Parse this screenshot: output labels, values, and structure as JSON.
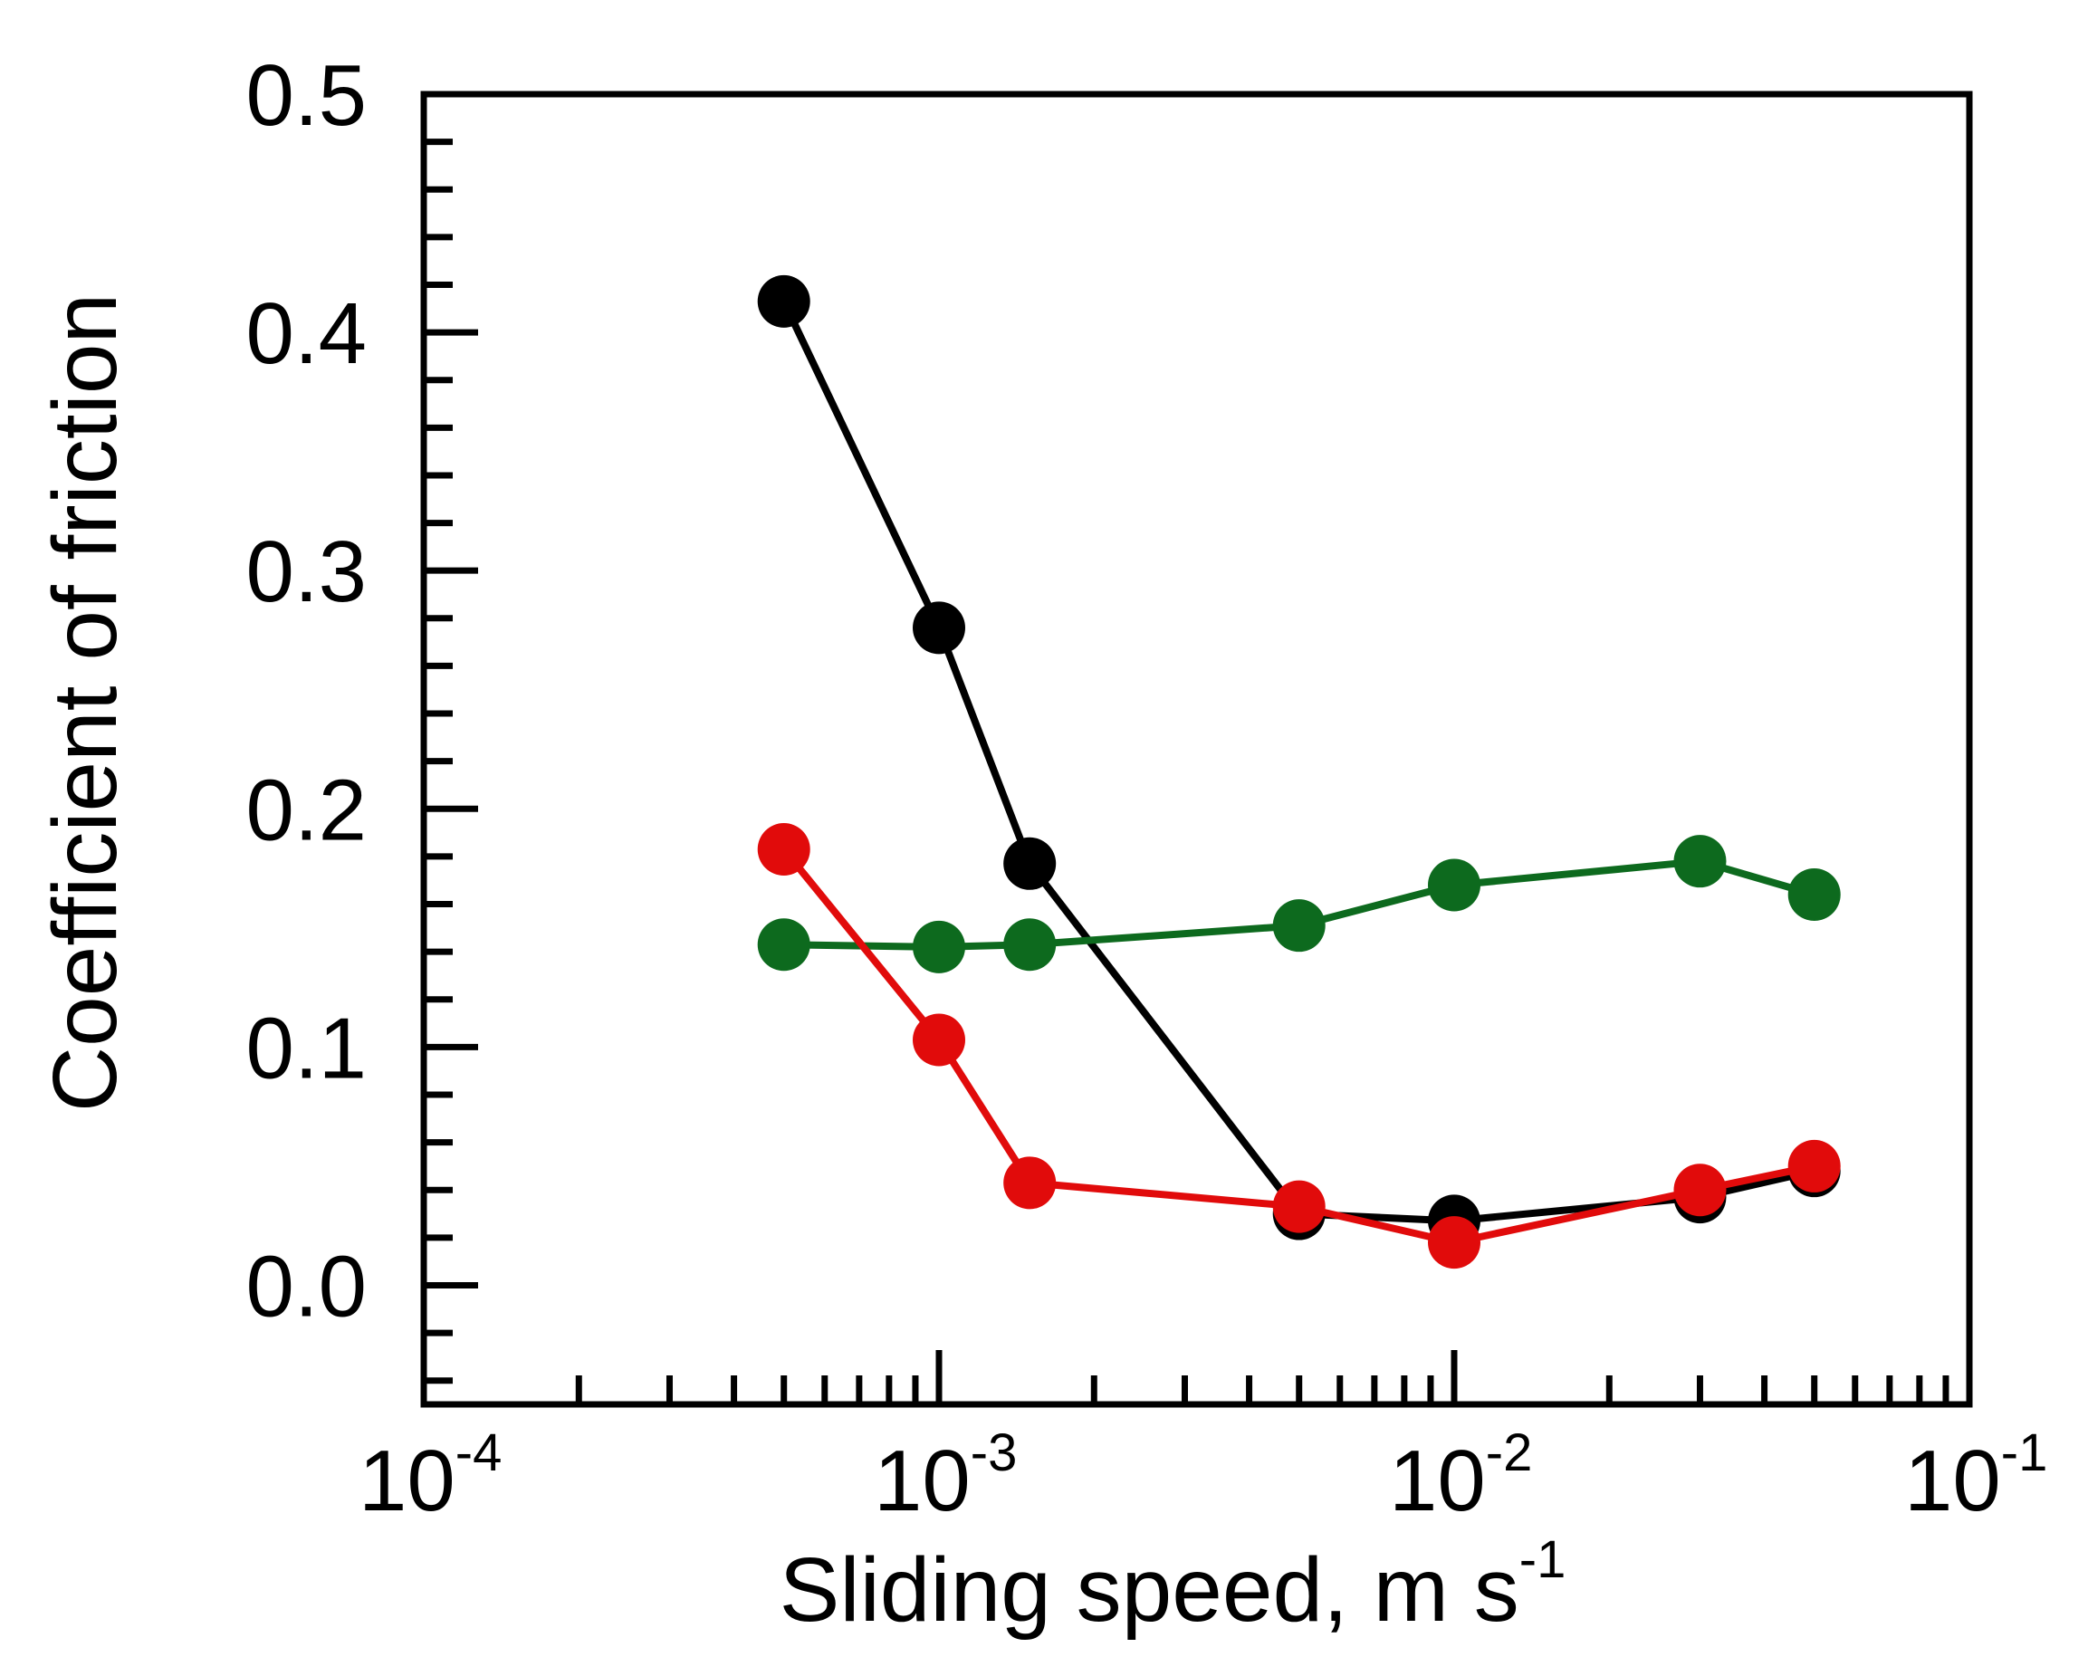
{
  "chart_data": {
    "type": "line",
    "title": "",
    "xlabel": "Sliding speed, m s",
    "xlabel_exponent": "-1",
    "ylabel": "Coefficient of friction",
    "xscale": "log",
    "xlim": [
      0.0001,
      0.1
    ],
    "ylim": [
      -0.05,
      0.5
    ],
    "x_ticks": [
      {
        "base": "10",
        "exp": "-4",
        "value": 0.0001
      },
      {
        "base": "10",
        "exp": "-3",
        "value": 0.001
      },
      {
        "base": "10",
        "exp": "-2",
        "value": 0.01
      },
      {
        "base": "10",
        "exp": "-1",
        "value": 0.1
      }
    ],
    "y_ticks": [
      {
        "label": "0.0",
        "value": 0.0
      },
      {
        "label": "0.1",
        "value": 0.1
      },
      {
        "label": "0.2",
        "value": 0.2
      },
      {
        "label": "0.3",
        "value": 0.3
      },
      {
        "label": "0.4",
        "value": 0.4
      },
      {
        "label": "0.5",
        "value": 0.5
      }
    ],
    "y_minor_step": 0.02,
    "grid": false,
    "legend": "none",
    "series": [
      {
        "name": "black",
        "color": "#000000",
        "points": [
          {
            "x": 0.0005,
            "y": 0.413
          },
          {
            "x": 0.001,
            "y": 0.276
          },
          {
            "x": 0.0015,
            "y": 0.177
          },
          {
            "x": 0.005,
            "y": 0.03
          },
          {
            "x": 0.01,
            "y": 0.027
          },
          {
            "x": 0.03,
            "y": 0.037
          },
          {
            "x": 0.05,
            "y": 0.048
          }
        ]
      },
      {
        "name": "green",
        "color": "#0d6a1e",
        "points": [
          {
            "x": 0.0005,
            "y": 0.143
          },
          {
            "x": 0.001,
            "y": 0.142
          },
          {
            "x": 0.0015,
            "y": 0.143
          },
          {
            "x": 0.005,
            "y": 0.151
          },
          {
            "x": 0.01,
            "y": 0.168
          },
          {
            "x": 0.03,
            "y": 0.178
          },
          {
            "x": 0.05,
            "y": 0.164
          }
        ]
      },
      {
        "name": "red",
        "color": "#e10b0b",
        "points": [
          {
            "x": 0.0005,
            "y": 0.183
          },
          {
            "x": 0.001,
            "y": 0.103
          },
          {
            "x": 0.0015,
            "y": 0.043
          },
          {
            "x": 0.005,
            "y": 0.033
          },
          {
            "x": 0.01,
            "y": 0.018
          },
          {
            "x": 0.03,
            "y": 0.04
          },
          {
            "x": 0.05,
            "y": 0.05
          }
        ]
      }
    ]
  }
}
